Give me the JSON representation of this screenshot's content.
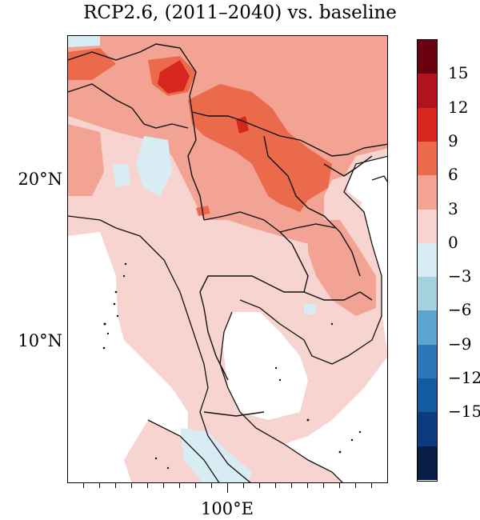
{
  "title": "RCP2.6, (2011–2040) vs. baseline",
  "map": {
    "lat_labels": [
      "20°N",
      "10°N"
    ],
    "lon_labels": [
      "100°E"
    ],
    "regions_colors": {
      "background": "#f7d4d0",
      "light_pink": "#f7d4d0",
      "salmon": "#f2a394",
      "orange_red": "#ec6a4c",
      "red": "#d7261d",
      "light_blue": "#d8ecf3",
      "ocean": "#ffffff"
    }
  },
  "colorbar": {
    "labels": [
      "15",
      "12",
      "9",
      "6",
      "3",
      "0",
      "−3",
      "−6",
      "−9",
      "−12",
      "−15"
    ],
    "colors": [
      "#6b0011",
      "#b2121f",
      "#d7261d",
      "#ec6a4c",
      "#f2a394",
      "#f7d4d0",
      "#d8ecf3",
      "#a6d2de",
      "#5da4cf",
      "#2f76b8",
      "#145aa0",
      "#0c3b80",
      "#081e47"
    ]
  }
}
